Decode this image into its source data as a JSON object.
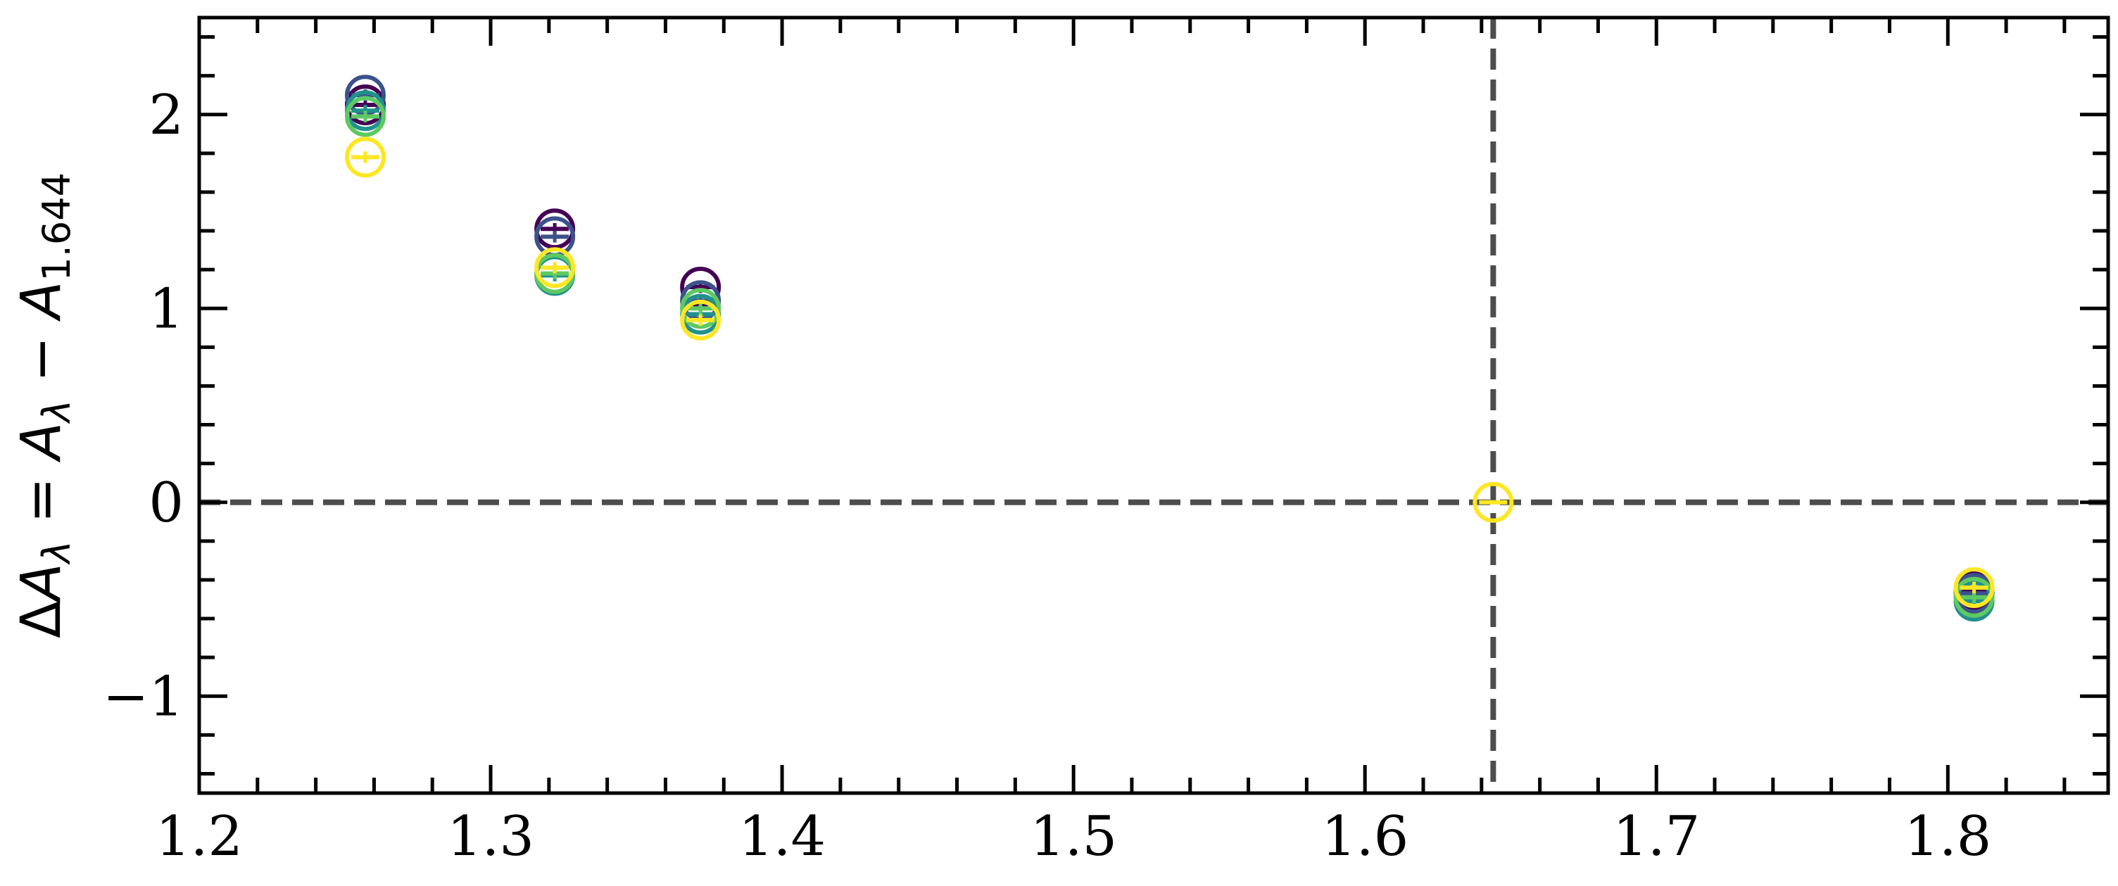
{
  "chart_data": {
    "type": "scatter",
    "title": "",
    "xlabel": "",
    "ylabel": "ΔA_λ = A_λ − A_1.644",
    "ylabel_parts": {
      "delta": "Δ",
      "a": "A",
      "sub_lambda": "λ",
      "eq": " = ",
      "minus": " − ",
      "sub_ref": "1.644"
    },
    "xlim": [
      1.2,
      1.855
    ],
    "ylim": [
      -1.5,
      2.5
    ],
    "xticks": [
      1.2,
      1.3,
      1.4,
      1.5,
      1.6,
      1.7,
      1.8
    ],
    "xtick_labels": [
      "1.2",
      "1.3",
      "1.4",
      "1.5",
      "1.6",
      "1.7",
      "1.8"
    ],
    "yticks": [
      -1,
      0,
      1,
      2
    ],
    "ytick_labels": [
      "−1",
      "0",
      "1",
      "2"
    ],
    "grid": false,
    "legend": "none",
    "reference_lines": {
      "horizontal_y": 0,
      "vertical_x": 1.644,
      "color": "#4d4d4d",
      "style": "dashed"
    },
    "series": [
      {
        "color": "#440154",
        "points": [
          {
            "x": 1.257,
            "y": 2.05,
            "err": 0.03
          },
          {
            "x": 1.322,
            "y": 1.41,
            "err": 0.03
          },
          {
            "x": 1.372,
            "y": 1.11,
            "err": 0.03
          },
          {
            "x": 1.809,
            "y": -0.46,
            "err": 0.03
          }
        ]
      },
      {
        "color": "#3b528b",
        "points": [
          {
            "x": 1.257,
            "y": 2.1,
            "err": 0.03
          },
          {
            "x": 1.322,
            "y": 1.37,
            "err": 0.03
          },
          {
            "x": 1.372,
            "y": 1.04,
            "err": 0.03
          },
          {
            "x": 1.809,
            "y": -0.47,
            "err": 0.03
          }
        ]
      },
      {
        "color": "#21918c",
        "points": [
          {
            "x": 1.257,
            "y": 2.02,
            "err": 0.03
          },
          {
            "x": 1.322,
            "y": 1.17,
            "err": 0.03
          },
          {
            "x": 1.372,
            "y": 0.97,
            "err": 0.03
          },
          {
            "x": 1.809,
            "y": -0.51,
            "err": 0.03
          }
        ]
      },
      {
        "color": "#5ec962",
        "points": [
          {
            "x": 1.257,
            "y": 1.99,
            "err": 0.03
          },
          {
            "x": 1.322,
            "y": 1.18,
            "err": 0.03
          },
          {
            "x": 1.372,
            "y": 1.0,
            "err": 0.03
          },
          {
            "x": 1.809,
            "y": -0.49,
            "err": 0.03
          }
        ]
      },
      {
        "color": "#fde725",
        "points": [
          {
            "x": 1.257,
            "y": 1.78,
            "err": 0.03
          },
          {
            "x": 1.322,
            "y": 1.21,
            "err": 0.03
          },
          {
            "x": 1.372,
            "y": 0.94,
            "err": 0.03
          },
          {
            "x": 1.644,
            "y": 0.0,
            "err": 0.0
          },
          {
            "x": 1.809,
            "y": -0.44,
            "err": 0.03
          }
        ]
      }
    ]
  }
}
